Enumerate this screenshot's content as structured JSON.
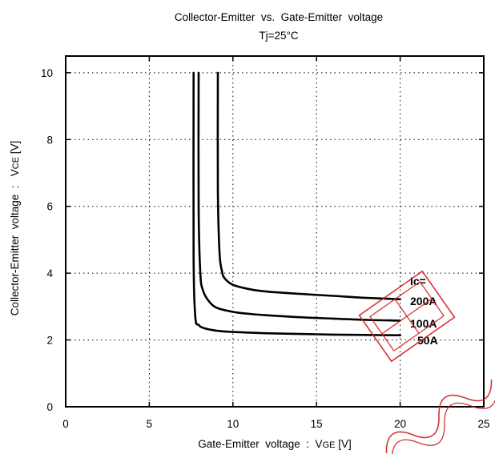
{
  "chart_data": {
    "type": "line",
    "title": "Collector-Emitter  vs.  Gate-Emitter  voltage",
    "subtitle": "Tj=25°C",
    "xlabel_main": "Gate-Emitter  voltage  :  V",
    "xlabel_sub": "GE",
    "xlabel_unit": " [V]",
    "ylabel_main": "Collector-Emitter  voltage  :   V",
    "ylabel_sub": "CE",
    "ylabel_unit": " [V]",
    "xlim": [
      0,
      25
    ],
    "ylim": [
      0,
      10.5
    ],
    "xticks": [
      0,
      5,
      10,
      15,
      20,
      25
    ],
    "yticks": [
      0,
      2,
      4,
      6,
      8,
      10
    ],
    "grid": true,
    "legend_title": "Ic=",
    "series": [
      {
        "name": "200A",
        "x": [
          9.1,
          9.1,
          9.2,
          9.35,
          9.5,
          10,
          11,
          12,
          14,
          16,
          18,
          20
        ],
        "y": [
          10,
          6.5,
          4.6,
          4.05,
          3.85,
          3.65,
          3.52,
          3.45,
          3.38,
          3.32,
          3.26,
          3.22
        ]
      },
      {
        "name": "100A",
        "x": [
          7.95,
          7.95,
          8.05,
          8.2,
          8.5,
          9,
          10,
          11,
          12,
          14,
          16,
          18,
          20
        ],
        "y": [
          10,
          6,
          4.0,
          3.5,
          3.2,
          2.97,
          2.84,
          2.78,
          2.74,
          2.68,
          2.64,
          2.6,
          2.58
        ]
      },
      {
        "name": "50A",
        "x": [
          7.65,
          7.65,
          7.75,
          7.95,
          8.3,
          9,
          10,
          12,
          14,
          16,
          18,
          20
        ],
        "y": [
          10,
          4.5,
          2.7,
          2.45,
          2.35,
          2.28,
          2.24,
          2.2,
          2.18,
          2.16,
          2.15,
          2.14
        ]
      }
    ]
  }
}
